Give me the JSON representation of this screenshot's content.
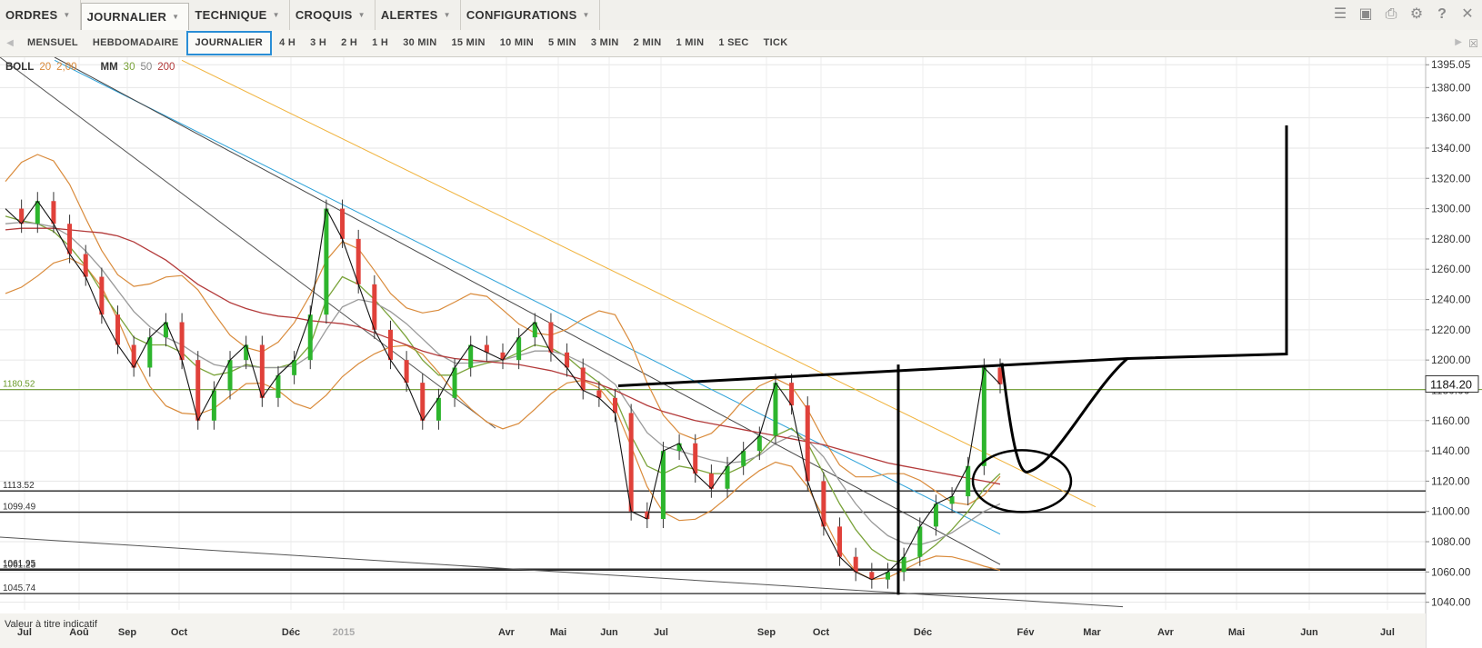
{
  "menu": {
    "items": [
      {
        "label": "ORDRES",
        "active": false
      },
      {
        "label": "JOURNALIER",
        "active": true
      },
      {
        "label": "TECHNIQUE",
        "active": false
      },
      {
        "label": "CROQUIS",
        "active": false
      },
      {
        "label": "ALERTES",
        "active": false
      },
      {
        "label": "CONFIGURATIONS",
        "active": false
      }
    ],
    "tools": [
      "layers-icon",
      "image-icon",
      "print-icon",
      "gear-icon",
      "help-icon",
      "close-icon"
    ]
  },
  "timeframes": {
    "items": [
      "MENSUEL",
      "HEBDOMADAIRE",
      "JOURNALIER",
      "4 H",
      "3 H",
      "2 H",
      "1 H",
      "30 MIN",
      "15 MIN",
      "10 MIN",
      "5 MIN",
      "3 MIN",
      "2 MIN",
      "1 MIN",
      "1 SEC",
      "TICK"
    ],
    "active": "JOURNALIER"
  },
  "legend": {
    "boll": {
      "label": "BOLL",
      "p1": "20",
      "p2": "2,00"
    },
    "mm": {
      "label": "MM",
      "p1": "30",
      "p2": "50",
      "p3": "200"
    }
  },
  "colors": {
    "up": "#2db52d",
    "down": "#e0413a",
    "bollinger": "#d98a3a",
    "ma30": "#7aa33a",
    "ma50": "#999999",
    "ma200": "#b33a3a",
    "trend_blue": "#2aa0d8",
    "trend_yellow": "#f0b23a",
    "accent": "#2a8ed6",
    "price_line": "#6a9a2a"
  },
  "footer_note": "Valeur à titre indicatif",
  "chart_data": {
    "type": "line",
    "y_axis": {
      "min": 1035,
      "max": 1400,
      "ticks": [
        "1395.05",
        "1380.00",
        "1360.00",
        "1340.00",
        "1320.00",
        "1300.00",
        "1280.00",
        "1260.00",
        "1240.00",
        "1220.00",
        "1200.00",
        "1180.00",
        "1160.00",
        "1140.00",
        "1120.00",
        "1100.00",
        "1080.00",
        "1060.00",
        "1040.00"
      ]
    },
    "x_axis": {
      "labels": [
        "Jul",
        "Aoû",
        "Sep",
        "Oct",
        "Déc",
        "2015",
        "Avr",
        "Mai",
        "Jun",
        "Jul",
        "Sep",
        "Oct",
        "Déc",
        "Fév",
        "Mar",
        "Avr",
        "Mai",
        "Jun",
        "Jul"
      ]
    },
    "current_price": {
      "value": 1184.2,
      "label": "1184.20"
    },
    "level_labels": [
      {
        "value": 1180.52,
        "label": "1180.52"
      },
      {
        "value": 1113.52,
        "label": "1113.52"
      },
      {
        "value": 1099.49,
        "label": "1099.49"
      },
      {
        "value": 1061.23,
        "label": "1061.23"
      },
      {
        "value": 1061.95,
        "label": "1061.95"
      },
      {
        "value": 1045.74,
        "label": "1045.74"
      }
    ],
    "series": [
      {
        "name": "Prix",
        "values": [
          1300,
          1290,
          1305,
          1290,
          1270,
          1255,
          1230,
          1210,
          1195,
          1215,
          1225,
          1200,
          1160,
          1180,
          1200,
          1210,
          1175,
          1190,
          1200,
          1230,
          1300,
          1280,
          1250,
          1220,
          1200,
          1185,
          1160,
          1175,
          1195,
          1210,
          1205,
          1200,
          1215,
          1225,
          1205,
          1195,
          1180,
          1175,
          1165,
          1100,
          1095,
          1140,
          1145,
          1125,
          1115,
          1130,
          1140,
          1150,
          1185,
          1170,
          1120,
          1090,
          1070,
          1060,
          1055,
          1060,
          1070,
          1090,
          1105,
          1110,
          1130,
          1195,
          1184
        ]
      },
      {
        "name": "MM 30",
        "values": [
          1295,
          1292,
          1290,
          1285,
          1275,
          1262,
          1245,
          1230,
          1215,
          1210,
          1210,
          1205,
          1195,
          1190,
          1192,
          1197,
          1195,
          1195,
          1198,
          1210,
          1240,
          1255,
          1250,
          1240,
          1228,
          1215,
          1200,
          1190,
          1190,
          1195,
          1198,
          1200,
          1205,
          1210,
          1208,
          1202,
          1193,
          1185,
          1175,
          1150,
          1130,
          1125,
          1130,
          1128,
          1125,
          1125,
          1130,
          1138,
          1150,
          1155,
          1145,
          1125,
          1105,
          1088,
          1075,
          1068,
          1066,
          1070,
          1078,
          1088,
          1100,
          1115,
          1125
        ]
      },
      {
        "name": "MM 50",
        "values": [
          1290,
          1291,
          1290,
          1288,
          1282,
          1272,
          1260,
          1246,
          1232,
          1222,
          1215,
          1210,
          1203,
          1197,
          1195,
          1196,
          1195,
          1195,
          1196,
          1203,
          1220,
          1235,
          1240,
          1238,
          1232,
          1224,
          1214,
          1204,
          1198,
          1198,
          1199,
          1200,
          1203,
          1206,
          1206,
          1203,
          1198,
          1192,
          1184,
          1168,
          1152,
          1143,
          1140,
          1137,
          1134,
          1132,
          1133,
          1137,
          1145,
          1150,
          1147,
          1136,
          1120,
          1105,
          1093,
          1084,
          1079,
          1078,
          1081,
          1086,
          1093,
          1100,
          1105
        ]
      },
      {
        "name": "MM 200",
        "values": [
          1286,
          1287,
          1287,
          1287,
          1286,
          1285,
          1284,
          1282,
          1278,
          1272,
          1266,
          1258,
          1250,
          1244,
          1238,
          1234,
          1231,
          1229,
          1228,
          1226,
          1225,
          1224,
          1222,
          1218,
          1214,
          1210,
          1206,
          1203,
          1201,
          1200,
          1199,
          1198,
          1197,
          1195,
          1193,
          1190,
          1187,
          1184,
          1180,
          1175,
          1170,
          1166,
          1163,
          1160,
          1158,
          1156,
          1154,
          1152,
          1150,
          1148,
          1146,
          1144,
          1141,
          1138,
          1135,
          1132,
          1130,
          1128,
          1126,
          1124,
          1122,
          1120,
          1118
        ]
      }
    ],
    "trendlines": [
      {
        "name": "black-trend",
        "from": [
          "Jul",
          "1380"
        ],
        "to": [
          "Jul",
          "1060"
        ]
      },
      {
        "name": "blue-trend",
        "from": [
          "Jul",
          "1395"
        ],
        "to": [
          "Fév",
          "1085"
        ]
      },
      {
        "name": "yellow-trend",
        "from": [
          "Aoû",
          "1395"
        ],
        "to": [
          "Fév",
          "1103"
        ]
      },
      {
        "name": "lower-trend",
        "from": [
          "Jul",
          "1083"
        ],
        "to": [
          "Avr",
          "1036"
        ]
      }
    ],
    "grid": true,
    "legend_position": "top-left"
  }
}
